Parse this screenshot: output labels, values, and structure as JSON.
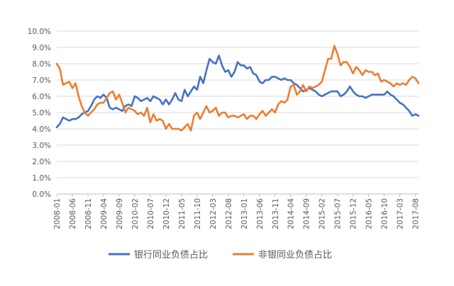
{
  "chart_data": {
    "type": "line",
    "title": "",
    "xlabel": "",
    "ylabel": "",
    "ylim": [
      0,
      10
    ],
    "y_ticks": [
      "0.0%",
      "1.0%",
      "2.0%",
      "3.0%",
      "4.0%",
      "5.0%",
      "6.0%",
      "7.0%",
      "8.0%",
      "9.0%",
      "10.0%"
    ],
    "x_tick_labels": [
      "2008-01",
      "2008-06",
      "2008-11",
      "2009-04",
      "2009-09",
      "2010-02",
      "2010-07",
      "2010-12",
      "2011-05",
      "2011-10",
      "2012-03",
      "2012-08",
      "2013-01",
      "2013-06",
      "2013-11",
      "2014-04",
      "2014-09",
      "2015-02",
      "2015-07",
      "2015-12",
      "2016-05",
      "2016-10",
      "2017-03",
      "2017-08"
    ],
    "grid": "horizontal",
    "legend_position": "bottom",
    "x_start": "2008-01",
    "x_end": "2017-09",
    "series": [
      {
        "name": "银行同业负债占比",
        "color": "#4472C4",
        "values": [
          [
            "2008-01",
            4.1
          ],
          [
            "2008-02",
            4.3
          ],
          [
            "2008-03",
            4.7
          ],
          [
            "2008-04",
            4.6
          ],
          [
            "2008-05",
            4.5
          ],
          [
            "2008-06",
            4.6
          ],
          [
            "2008-07",
            4.6
          ],
          [
            "2008-08",
            4.7
          ],
          [
            "2008-09",
            4.9
          ],
          [
            "2008-10",
            5.0
          ],
          [
            "2008-11",
            5.1
          ],
          [
            "2008-12",
            5.4
          ],
          [
            "2009-01",
            5.8
          ],
          [
            "2009-02",
            6.0
          ],
          [
            "2009-03",
            5.9
          ],
          [
            "2009-04",
            6.1
          ],
          [
            "2009-05",
            5.9
          ],
          [
            "2009-06",
            5.3
          ],
          [
            "2009-07",
            5.2
          ],
          [
            "2009-08",
            5.3
          ],
          [
            "2009-09",
            5.2
          ],
          [
            "2009-10",
            5.1
          ],
          [
            "2009-11",
            5.4
          ],
          [
            "2009-12",
            5.5
          ],
          [
            "2010-01",
            5.4
          ],
          [
            "2010-02",
            6.0
          ],
          [
            "2010-03",
            5.9
          ],
          [
            "2010-04",
            5.7
          ],
          [
            "2010-05",
            5.8
          ],
          [
            "2010-06",
            5.9
          ],
          [
            "2010-07",
            5.7
          ],
          [
            "2010-08",
            6.0
          ],
          [
            "2010-09",
            5.9
          ],
          [
            "2010-10",
            5.8
          ],
          [
            "2010-11",
            5.5
          ],
          [
            "2010-12",
            5.8
          ],
          [
            "2011-01",
            5.5
          ],
          [
            "2011-02",
            5.8
          ],
          [
            "2011-03",
            6.2
          ],
          [
            "2011-04",
            5.8
          ],
          [
            "2011-05",
            5.7
          ],
          [
            "2011-06",
            6.4
          ],
          [
            "2011-07",
            6.0
          ],
          [
            "2011-08",
            6.3
          ],
          [
            "2011-09",
            6.6
          ],
          [
            "2011-10",
            6.4
          ],
          [
            "2011-11",
            7.2
          ],
          [
            "2011-12",
            6.8
          ],
          [
            "2012-01",
            7.6
          ],
          [
            "2012-02",
            8.3
          ],
          [
            "2012-03",
            8.1
          ],
          [
            "2012-04",
            8.0
          ],
          [
            "2012-05",
            8.5
          ],
          [
            "2012-06",
            7.9
          ],
          [
            "2012-07",
            7.5
          ],
          [
            "2012-08",
            7.6
          ],
          [
            "2012-09",
            7.2
          ],
          [
            "2012-10",
            7.5
          ],
          [
            "2012-11",
            8.1
          ],
          [
            "2012-12",
            7.9
          ],
          [
            "2013-01",
            7.9
          ],
          [
            "2013-02",
            7.7
          ],
          [
            "2013-03",
            7.8
          ],
          [
            "2013-04",
            7.4
          ],
          [
            "2013-05",
            7.3
          ],
          [
            "2013-06",
            6.9
          ],
          [
            "2013-07",
            6.8
          ],
          [
            "2013-08",
            7.0
          ],
          [
            "2013-09",
            7.0
          ],
          [
            "2013-10",
            7.2
          ],
          [
            "2013-11",
            7.2
          ],
          [
            "2013-12",
            7.1
          ],
          [
            "2014-01",
            7.0
          ],
          [
            "2014-02",
            7.1
          ],
          [
            "2014-03",
            7.0
          ],
          [
            "2014-04",
            7.0
          ],
          [
            "2014-05",
            6.8
          ],
          [
            "2014-06",
            6.7
          ],
          [
            "2014-07",
            6.5
          ],
          [
            "2014-08",
            6.3
          ],
          [
            "2014-09",
            6.4
          ],
          [
            "2014-10",
            6.5
          ],
          [
            "2014-11",
            6.4
          ],
          [
            "2014-12",
            6.3
          ],
          [
            "2015-01",
            6.1
          ],
          [
            "2015-02",
            6.0
          ],
          [
            "2015-03",
            6.1
          ],
          [
            "2015-04",
            6.2
          ],
          [
            "2015-05",
            6.3
          ],
          [
            "2015-06",
            6.3
          ],
          [
            "2015-07",
            6.3
          ],
          [
            "2015-08",
            6.0
          ],
          [
            "2015-09",
            6.1
          ],
          [
            "2015-10",
            6.3
          ],
          [
            "2015-11",
            6.6
          ],
          [
            "2015-12",
            6.3
          ],
          [
            "2016-01",
            6.1
          ],
          [
            "2016-02",
            6.0
          ],
          [
            "2016-03",
            6.0
          ],
          [
            "2016-04",
            5.9
          ],
          [
            "2016-05",
            6.0
          ],
          [
            "2016-06",
            6.1
          ],
          [
            "2016-07",
            6.1
          ],
          [
            "2016-08",
            6.1
          ],
          [
            "2016-09",
            6.1
          ],
          [
            "2016-10",
            6.1
          ],
          [
            "2016-11",
            6.3
          ],
          [
            "2016-12",
            6.1
          ],
          [
            "2017-01",
            6.0
          ],
          [
            "2017-02",
            5.8
          ],
          [
            "2017-03",
            5.6
          ],
          [
            "2017-04",
            5.5
          ],
          [
            "2017-05",
            5.3
          ],
          [
            "2017-06",
            5.1
          ],
          [
            "2017-07",
            4.8
          ],
          [
            "2017-08",
            4.9
          ],
          [
            "2017-09",
            4.8
          ]
        ]
      },
      {
        "name": "非银同业负债占比",
        "color": "#ED7D31",
        "values": [
          [
            "2008-01",
            8.0
          ],
          [
            "2008-02",
            7.7
          ],
          [
            "2008-03",
            6.7
          ],
          [
            "2008-04",
            6.8
          ],
          [
            "2008-05",
            6.9
          ],
          [
            "2008-06",
            6.5
          ],
          [
            "2008-07",
            6.8
          ],
          [
            "2008-08",
            6.0
          ],
          [
            "2008-09",
            5.4
          ],
          [
            "2008-10",
            5.0
          ],
          [
            "2008-11",
            4.8
          ],
          [
            "2008-12",
            5.0
          ],
          [
            "2009-01",
            5.2
          ],
          [
            "2009-02",
            5.5
          ],
          [
            "2009-03",
            5.6
          ],
          [
            "2009-04",
            5.6
          ],
          [
            "2009-05",
            5.9
          ],
          [
            "2009-06",
            6.2
          ],
          [
            "2009-07",
            6.3
          ],
          [
            "2009-08",
            5.8
          ],
          [
            "2009-09",
            6.1
          ],
          [
            "2009-10",
            5.6
          ],
          [
            "2009-11",
            5.0
          ],
          [
            "2009-12",
            5.3
          ],
          [
            "2010-01",
            5.2
          ],
          [
            "2010-02",
            5.1
          ],
          [
            "2010-03",
            4.9
          ],
          [
            "2010-04",
            5.0
          ],
          [
            "2010-05",
            4.8
          ],
          [
            "2010-06",
            5.3
          ],
          [
            "2010-07",
            4.4
          ],
          [
            "2010-08",
            4.9
          ],
          [
            "2010-09",
            4.5
          ],
          [
            "2010-10",
            4.6
          ],
          [
            "2010-11",
            4.5
          ],
          [
            "2010-12",
            4.0
          ],
          [
            "2011-01",
            4.3
          ],
          [
            "2011-02",
            4.0
          ],
          [
            "2011-03",
            4.0
          ],
          [
            "2011-04",
            4.0
          ],
          [
            "2011-05",
            3.9
          ],
          [
            "2011-06",
            4.1
          ],
          [
            "2011-07",
            4.3
          ],
          [
            "2011-08",
            3.9
          ],
          [
            "2011-09",
            4.8
          ],
          [
            "2011-10",
            5.0
          ],
          [
            "2011-11",
            4.6
          ],
          [
            "2011-12",
            5.0
          ],
          [
            "2012-01",
            5.4
          ],
          [
            "2012-02",
            5.0
          ],
          [
            "2012-03",
            5.1
          ],
          [
            "2012-04",
            5.3
          ],
          [
            "2012-05",
            4.8
          ],
          [
            "2012-06",
            5.0
          ],
          [
            "2012-07",
            5.0
          ],
          [
            "2012-08",
            4.7
          ],
          [
            "2012-09",
            4.8
          ],
          [
            "2012-10",
            4.8
          ],
          [
            "2012-11",
            4.7
          ],
          [
            "2012-12",
            4.8
          ],
          [
            "2013-01",
            4.9
          ],
          [
            "2013-02",
            4.6
          ],
          [
            "2013-03",
            4.8
          ],
          [
            "2013-04",
            4.8
          ],
          [
            "2013-05",
            4.6
          ],
          [
            "2013-06",
            4.9
          ],
          [
            "2013-07",
            5.1
          ],
          [
            "2013-08",
            4.8
          ],
          [
            "2013-09",
            5.0
          ],
          [
            "2013-10",
            5.2
          ],
          [
            "2013-11",
            5.0
          ],
          [
            "2013-12",
            5.5
          ],
          [
            "2014-01",
            5.7
          ],
          [
            "2014-02",
            5.6
          ],
          [
            "2014-03",
            5.8
          ],
          [
            "2014-04",
            6.6
          ],
          [
            "2014-05",
            6.7
          ],
          [
            "2014-06",
            6.1
          ],
          [
            "2014-07",
            6.3
          ],
          [
            "2014-08",
            6.7
          ],
          [
            "2014-09",
            6.3
          ],
          [
            "2014-10",
            6.6
          ],
          [
            "2014-11",
            6.5
          ],
          [
            "2014-12",
            6.6
          ],
          [
            "2015-01",
            6.7
          ],
          [
            "2015-02",
            6.9
          ],
          [
            "2015-03",
            7.6
          ],
          [
            "2015-04",
            8.3
          ],
          [
            "2015-05",
            8.3
          ],
          [
            "2015-06",
            9.1
          ],
          [
            "2015-07",
            8.6
          ],
          [
            "2015-08",
            7.9
          ],
          [
            "2015-09",
            8.1
          ],
          [
            "2015-10",
            8.1
          ],
          [
            "2015-11",
            7.8
          ],
          [
            "2015-12",
            7.4
          ],
          [
            "2016-01",
            7.8
          ],
          [
            "2016-02",
            7.6
          ],
          [
            "2016-03",
            7.3
          ],
          [
            "2016-04",
            7.6
          ],
          [
            "2016-05",
            7.5
          ],
          [
            "2016-06",
            7.5
          ],
          [
            "2016-07",
            7.3
          ],
          [
            "2016-08",
            7.4
          ],
          [
            "2016-09",
            6.9
          ],
          [
            "2016-10",
            7.0
          ],
          [
            "2016-11",
            6.9
          ],
          [
            "2016-12",
            6.8
          ],
          [
            "2017-01",
            6.6
          ],
          [
            "2017-02",
            6.8
          ],
          [
            "2017-03",
            6.7
          ],
          [
            "2017-04",
            6.8
          ],
          [
            "2017-05",
            6.7
          ],
          [
            "2017-06",
            7.0
          ],
          [
            "2017-07",
            7.2
          ],
          [
            "2017-08",
            7.1
          ],
          [
            "2017-09",
            6.8
          ]
        ]
      }
    ]
  }
}
